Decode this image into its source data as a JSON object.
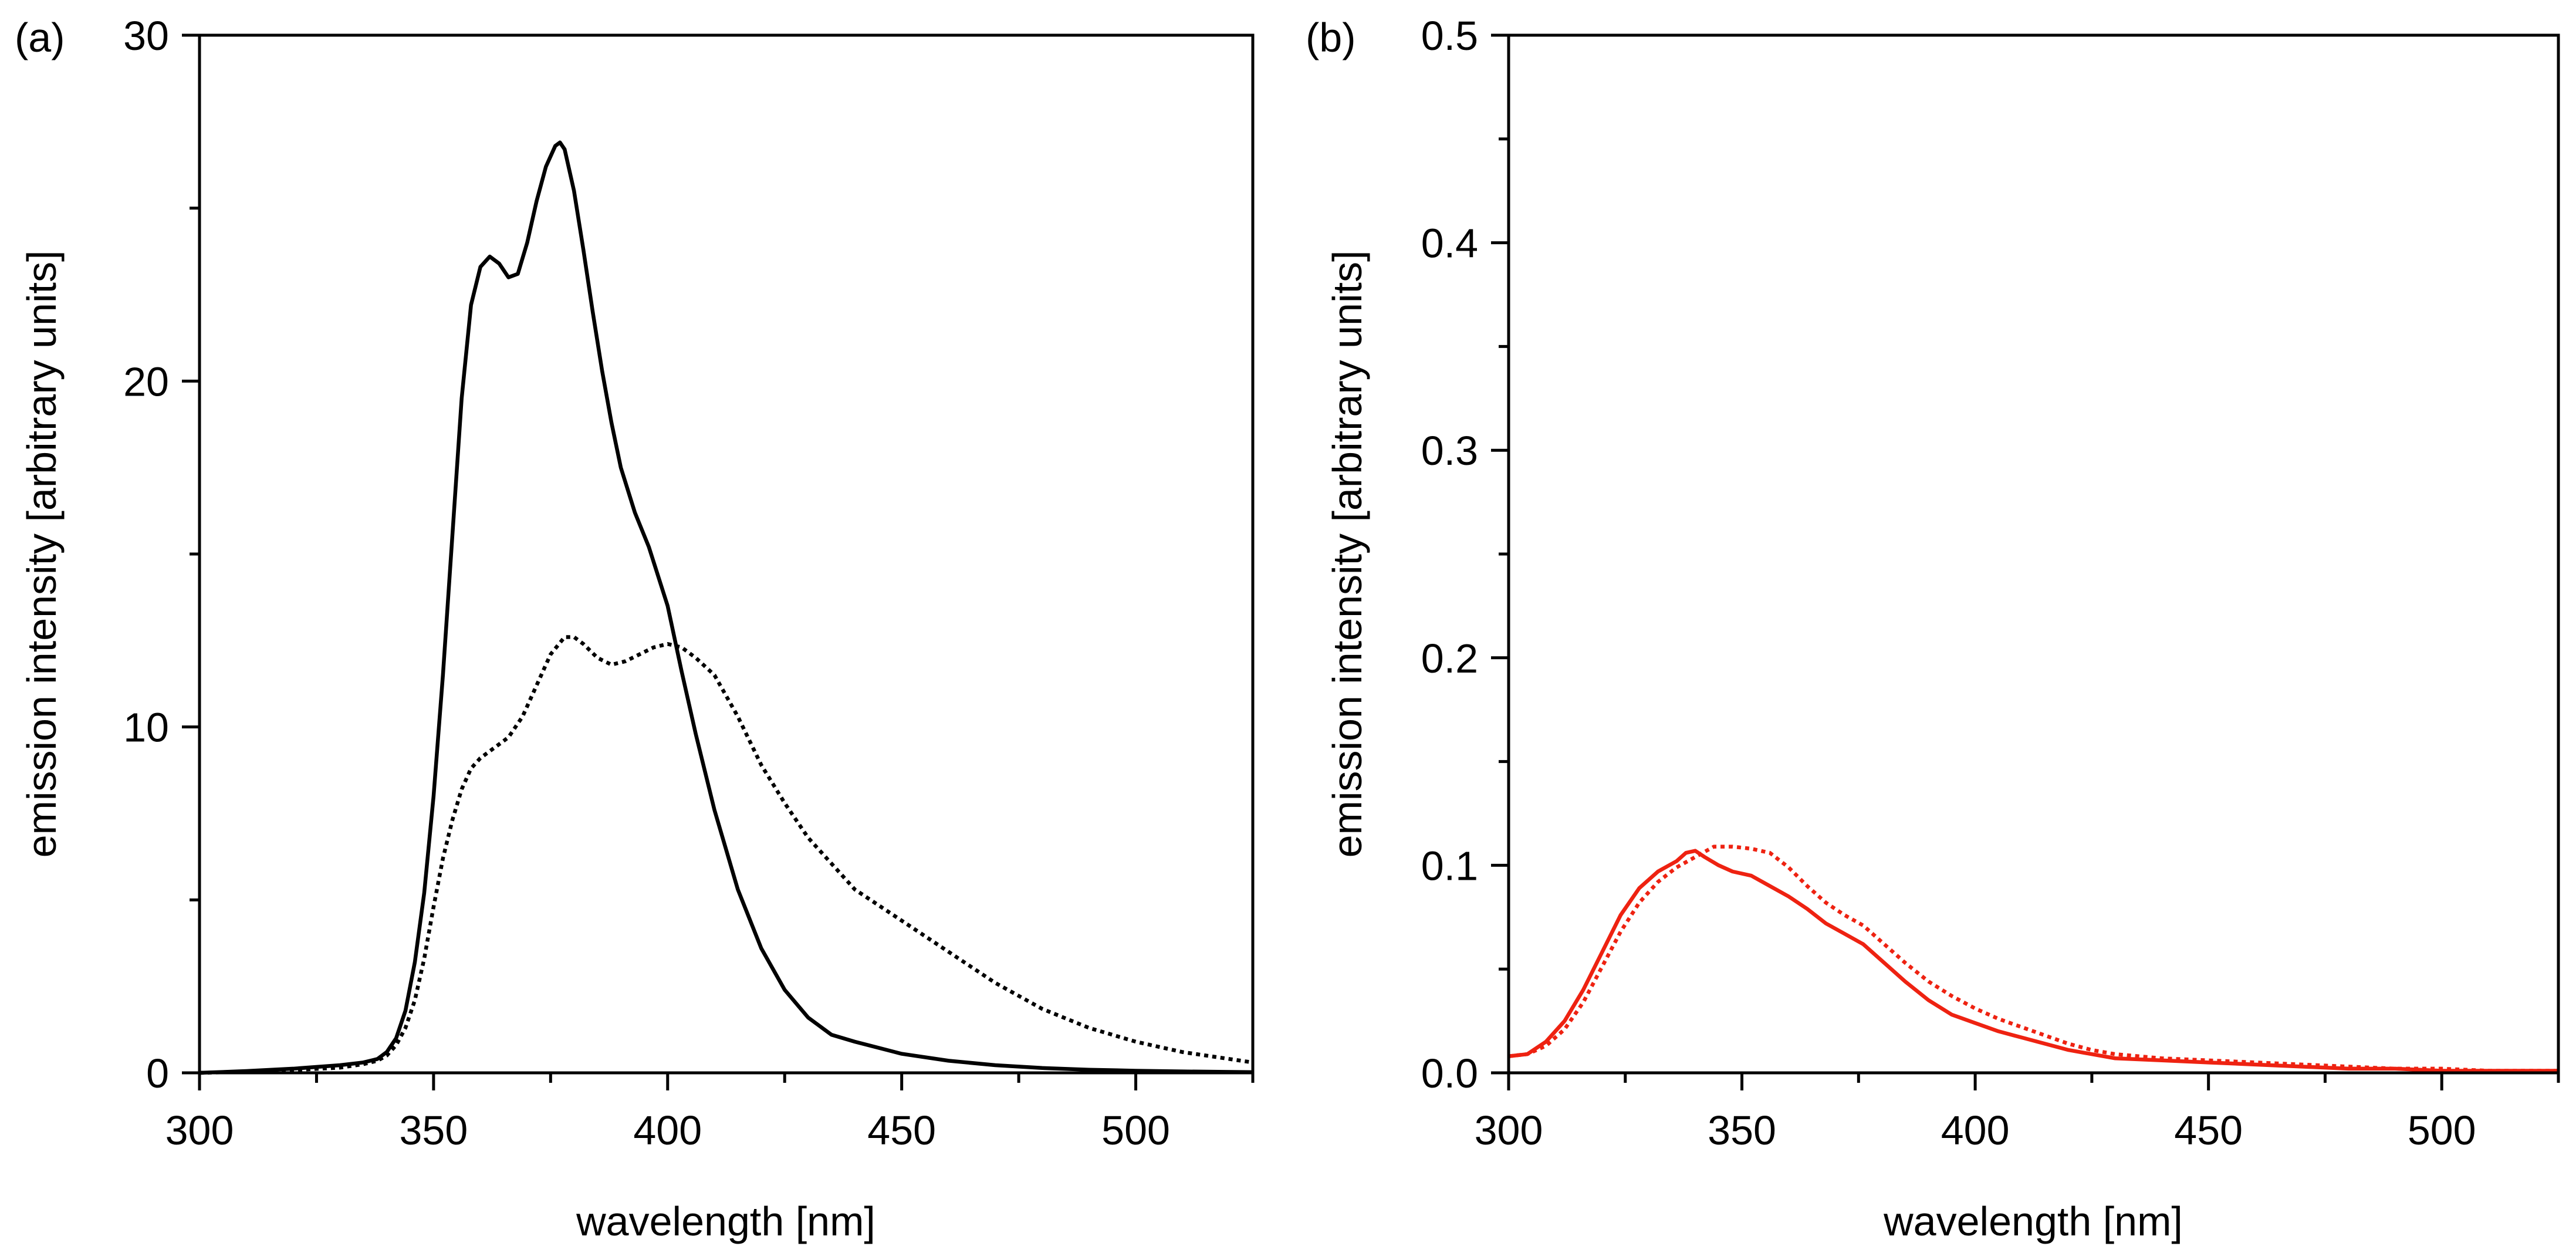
{
  "chart_data": [
    {
      "panel_label": "(a)",
      "type": "line",
      "xlabel": "wavelength [nm]",
      "ylabel": "emission intensity [arbitrary units]",
      "xlim": [
        300,
        525
      ],
      "ylim": [
        0,
        30
      ],
      "xticks": [
        300,
        350,
        400,
        450,
        500
      ],
      "xtick_labels": [
        "300",
        "350",
        "400",
        "450",
        "500"
      ],
      "xminor": [
        325,
        375,
        425,
        475,
        525
      ],
      "yticks": [
        0,
        10,
        20,
        30
      ],
      "ytick_labels": [
        "0",
        "10",
        "20",
        "30"
      ],
      "yminor": [
        5,
        15,
        25
      ],
      "series": [
        {
          "name": "solid",
          "style": "solid",
          "color": "#000000",
          "x": [
            300,
            310,
            320,
            330,
            335,
            338,
            340,
            342,
            344,
            346,
            348,
            350,
            352,
            354,
            356,
            358,
            360,
            362,
            364,
            366,
            368,
            370,
            372,
            374,
            376,
            377,
            378,
            380,
            382,
            384,
            386,
            388,
            390,
            393,
            396,
            400,
            403,
            406,
            410,
            415,
            420,
            425,
            430,
            435,
            440,
            450,
            460,
            470,
            480,
            490,
            500,
            510,
            525
          ],
          "y": [
            0,
            0.05,
            0.12,
            0.22,
            0.3,
            0.4,
            0.6,
            1.0,
            1.8,
            3.2,
            5.2,
            8.0,
            11.5,
            15.5,
            19.5,
            22.2,
            23.3,
            23.6,
            23.4,
            23.0,
            23.1,
            24.0,
            25.2,
            26.2,
            26.8,
            26.9,
            26.7,
            25.5,
            23.8,
            22.0,
            20.3,
            18.8,
            17.5,
            16.2,
            15.2,
            13.5,
            11.6,
            9.8,
            7.6,
            5.3,
            3.6,
            2.4,
            1.6,
            1.1,
            0.9,
            0.55,
            0.35,
            0.22,
            0.14,
            0.09,
            0.06,
            0.04,
            0.02
          ]
        },
        {
          "name": "dotted",
          "style": "dotted",
          "color": "#000000",
          "x": [
            300,
            310,
            320,
            330,
            335,
            338,
            340,
            342,
            344,
            346,
            348,
            350,
            352,
            354,
            356,
            358,
            360,
            363,
            366,
            369,
            372,
            375,
            378,
            380,
            382,
            385,
            388,
            391,
            394,
            397,
            400,
            403,
            406,
            410,
            415,
            420,
            425,
            430,
            440,
            450,
            460,
            470,
            480,
            490,
            500,
            510,
            525
          ],
          "y": [
            0,
            0.03,
            0.08,
            0.15,
            0.25,
            0.35,
            0.5,
            0.8,
            1.3,
            2.1,
            3.3,
            4.8,
            6.2,
            7.3,
            8.2,
            8.8,
            9.1,
            9.4,
            9.7,
            10.3,
            11.2,
            12.1,
            12.6,
            12.6,
            12.4,
            12.0,
            11.8,
            11.9,
            12.1,
            12.3,
            12.4,
            12.3,
            12.0,
            11.5,
            10.3,
            8.9,
            7.8,
            6.8,
            5.3,
            4.4,
            3.5,
            2.6,
            1.85,
            1.3,
            0.9,
            0.6,
            0.3
          ]
        }
      ]
    },
    {
      "panel_label": "(b)",
      "type": "line",
      "xlabel": "wavelength [nm]",
      "ylabel": "emission intensity [arbitrary units]",
      "xlim": [
        300,
        525
      ],
      "ylim": [
        0,
        0.5
      ],
      "xticks": [
        300,
        350,
        400,
        450,
        500
      ],
      "xtick_labels": [
        "300",
        "350",
        "400",
        "450",
        "500"
      ],
      "xminor": [
        325,
        375,
        425,
        475,
        525
      ],
      "yticks": [
        0,
        0.1,
        0.2,
        0.3,
        0.4,
        0.5
      ],
      "ytick_labels": [
        "0.0",
        "0.1",
        "0.2",
        "0.3",
        "0.4",
        "0.5"
      ],
      "yminor": [
        0.05,
        0.15,
        0.25,
        0.35,
        0.45
      ],
      "series": [
        {
          "name": "solid-red",
          "style": "solid",
          "color": "#ee2211",
          "x": [
            300,
            304,
            308,
            312,
            316,
            320,
            324,
            328,
            332,
            336,
            338,
            340,
            342,
            345,
            348,
            352,
            356,
            360,
            364,
            368,
            372,
            376,
            380,
            385,
            390,
            395,
            400,
            405,
            410,
            415,
            420,
            425,
            430,
            440,
            450,
            460,
            470,
            480,
            490,
            500,
            510,
            520,
            525
          ],
          "y": [
            0.008,
            0.009,
            0.015,
            0.025,
            0.04,
            0.058,
            0.076,
            0.089,
            0.097,
            0.102,
            0.106,
            0.107,
            0.104,
            0.1,
            0.097,
            0.095,
            0.09,
            0.085,
            0.079,
            0.072,
            0.067,
            0.062,
            0.054,
            0.044,
            0.035,
            0.028,
            0.024,
            0.02,
            0.017,
            0.014,
            0.011,
            0.009,
            0.007,
            0.006,
            0.005,
            0.004,
            0.003,
            0.002,
            0.002,
            0.001,
            0.001,
            0.001,
            0.001
          ]
        },
        {
          "name": "dotted-red",
          "style": "dotted",
          "color": "#ee2211",
          "x": [
            300,
            304,
            308,
            312,
            316,
            320,
            324,
            328,
            332,
            336,
            340,
            344,
            348,
            352,
            356,
            360,
            364,
            368,
            372,
            376,
            380,
            385,
            390,
            395,
            400,
            405,
            410,
            415,
            420,
            425,
            430,
            440,
            450,
            460,
            470,
            480,
            490,
            500,
            510,
            520,
            525
          ],
          "y": [
            0.008,
            0.009,
            0.013,
            0.021,
            0.034,
            0.051,
            0.068,
            0.082,
            0.092,
            0.099,
            0.104,
            0.109,
            0.109,
            0.108,
            0.106,
            0.099,
            0.09,
            0.082,
            0.076,
            0.071,
            0.063,
            0.053,
            0.044,
            0.037,
            0.031,
            0.026,
            0.022,
            0.018,
            0.014,
            0.011,
            0.009,
            0.007,
            0.006,
            0.005,
            0.004,
            0.003,
            0.002,
            0.002,
            0.001,
            0.001,
            0.001
          ]
        }
      ]
    }
  ]
}
